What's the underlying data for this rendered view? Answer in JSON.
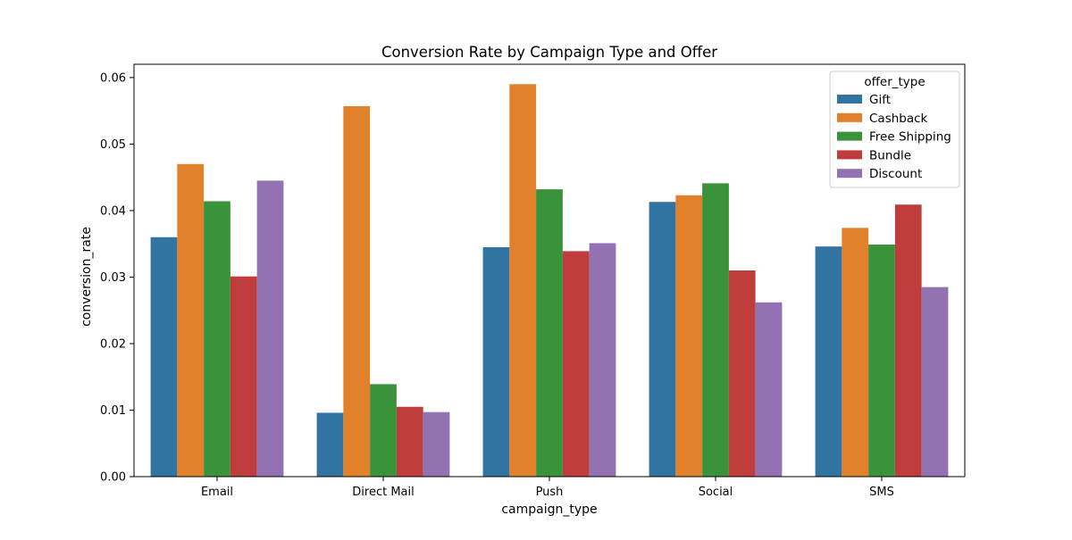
{
  "chart_data": {
    "type": "bar",
    "title": "Conversion Rate by Campaign Type and Offer",
    "xlabel": "campaign_type",
    "ylabel": "conversion_rate",
    "categories": [
      "Email",
      "Direct Mail",
      "Push",
      "Social",
      "SMS"
    ],
    "ylim": [
      0,
      0.062
    ],
    "yticks": [
      0.0,
      0.01,
      0.02,
      0.03,
      0.04,
      0.05,
      0.06
    ],
    "ytick_labels": [
      "0.00",
      "0.01",
      "0.02",
      "0.03",
      "0.04",
      "0.05",
      "0.06"
    ],
    "grid": false,
    "legend": {
      "title": "offer_type",
      "placement": "top-right"
    },
    "series": [
      {
        "name": "Gift",
        "color": "#3274a1",
        "values": [
          0.036,
          0.0096,
          0.0345,
          0.0413,
          0.0346
        ]
      },
      {
        "name": "Cashback",
        "color": "#e1812c",
        "values": [
          0.047,
          0.0557,
          0.059,
          0.0423,
          0.0374
        ]
      },
      {
        "name": "Free Shipping",
        "color": "#3a923a",
        "values": [
          0.0414,
          0.0139,
          0.0432,
          0.0441,
          0.0349
        ]
      },
      {
        "name": "Bundle",
        "color": "#c03d3e",
        "values": [
          0.0301,
          0.0105,
          0.0339,
          0.031,
          0.0409
        ]
      },
      {
        "name": "Discount",
        "color": "#9372b2",
        "values": [
          0.0445,
          0.0097,
          0.0351,
          0.0262,
          0.0285
        ]
      }
    ]
  }
}
